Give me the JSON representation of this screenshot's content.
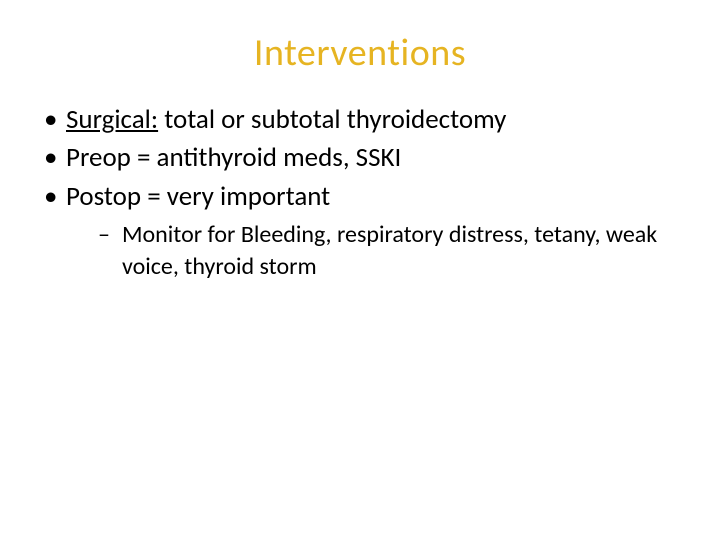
{
  "slide": {
    "title": "Interventions",
    "title_color": "#e6b422",
    "text_color": "#000000",
    "background_color": "#ffffff",
    "bullets": [
      {
        "emphasis": "Surgical:",
        "rest": " total or subtotal thyroidectomy",
        "children": []
      },
      {
        "emphasis": "",
        "rest": "Preop = antithyroid meds, SSKI",
        "children": []
      },
      {
        "emphasis": "",
        "rest": "Postop = very important",
        "children": [
          "Monitor for Bleeding, respiratory distress, tetany, weak voice, thyroid storm"
        ]
      }
    ],
    "fonts": {
      "title_size_pt": 38,
      "body_size_pt": 27,
      "sub_size_pt": 24,
      "family": "Calibri"
    }
  }
}
